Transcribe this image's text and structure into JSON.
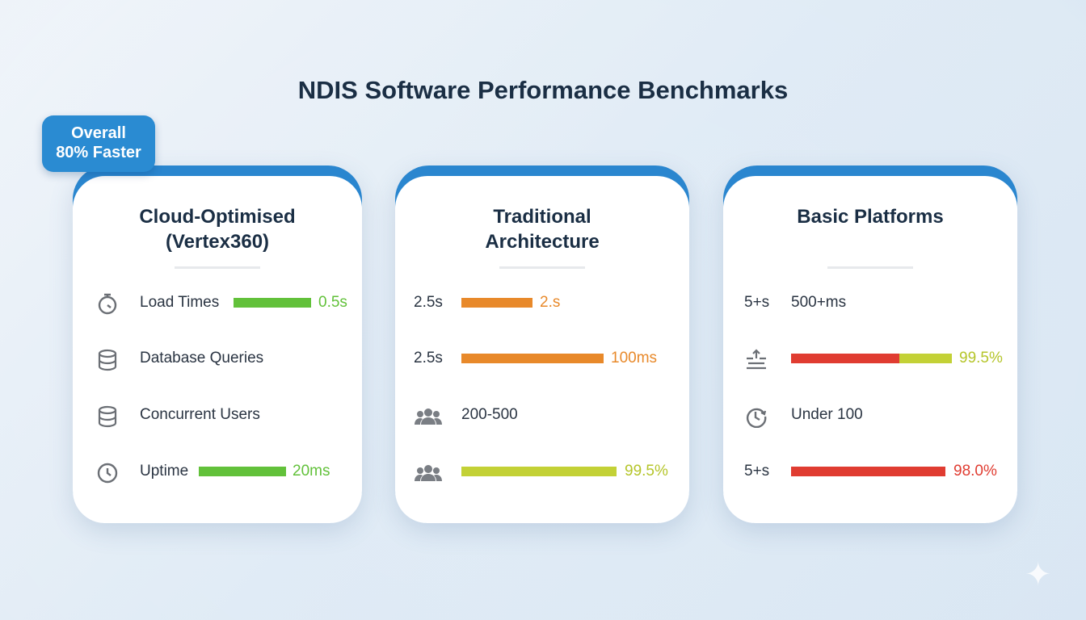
{
  "title": "NDIS Software Performance Benchmarks",
  "badge": {
    "line1": "Overall",
    "line2": "80% Faster"
  },
  "colors": {
    "accent": "#2a86cf",
    "green": "#62c13a",
    "orange": "#e8892a",
    "lime": "#c3d136",
    "red": "#e03c31"
  },
  "cards": [
    {
      "title1": "Cloud-Optimised",
      "title2": "(Vertex360)",
      "rows": [
        {
          "icon": "stopwatch-icon",
          "label": "Load Times",
          "value": "0.5s"
        },
        {
          "icon": "database-icon",
          "label": "Database Queries"
        },
        {
          "icon": "database-icon",
          "label": "Concurrent Users"
        },
        {
          "icon": "clock-icon",
          "label": "Uptime",
          "value": "20ms"
        }
      ]
    },
    {
      "title1": "Traditional",
      "title2": "Architecture",
      "rows": [
        {
          "left": "2.5s",
          "value": "2.s"
        },
        {
          "left": "2.5s",
          "value": "100ms"
        },
        {
          "icon": "users-icon",
          "label": "200-500"
        },
        {
          "icon": "users-icon",
          "value": "99.5%"
        }
      ]
    },
    {
      "title1": "Basic Platforms",
      "rows": [
        {
          "left": "5+s",
          "label": "500+ms"
        },
        {
          "icon": "sliders-icon",
          "value": "99.5%"
        },
        {
          "icon": "clock-refresh-icon",
          "label": "Under 100"
        },
        {
          "left": "5+s",
          "value": "98.0%"
        }
      ]
    }
  ]
}
